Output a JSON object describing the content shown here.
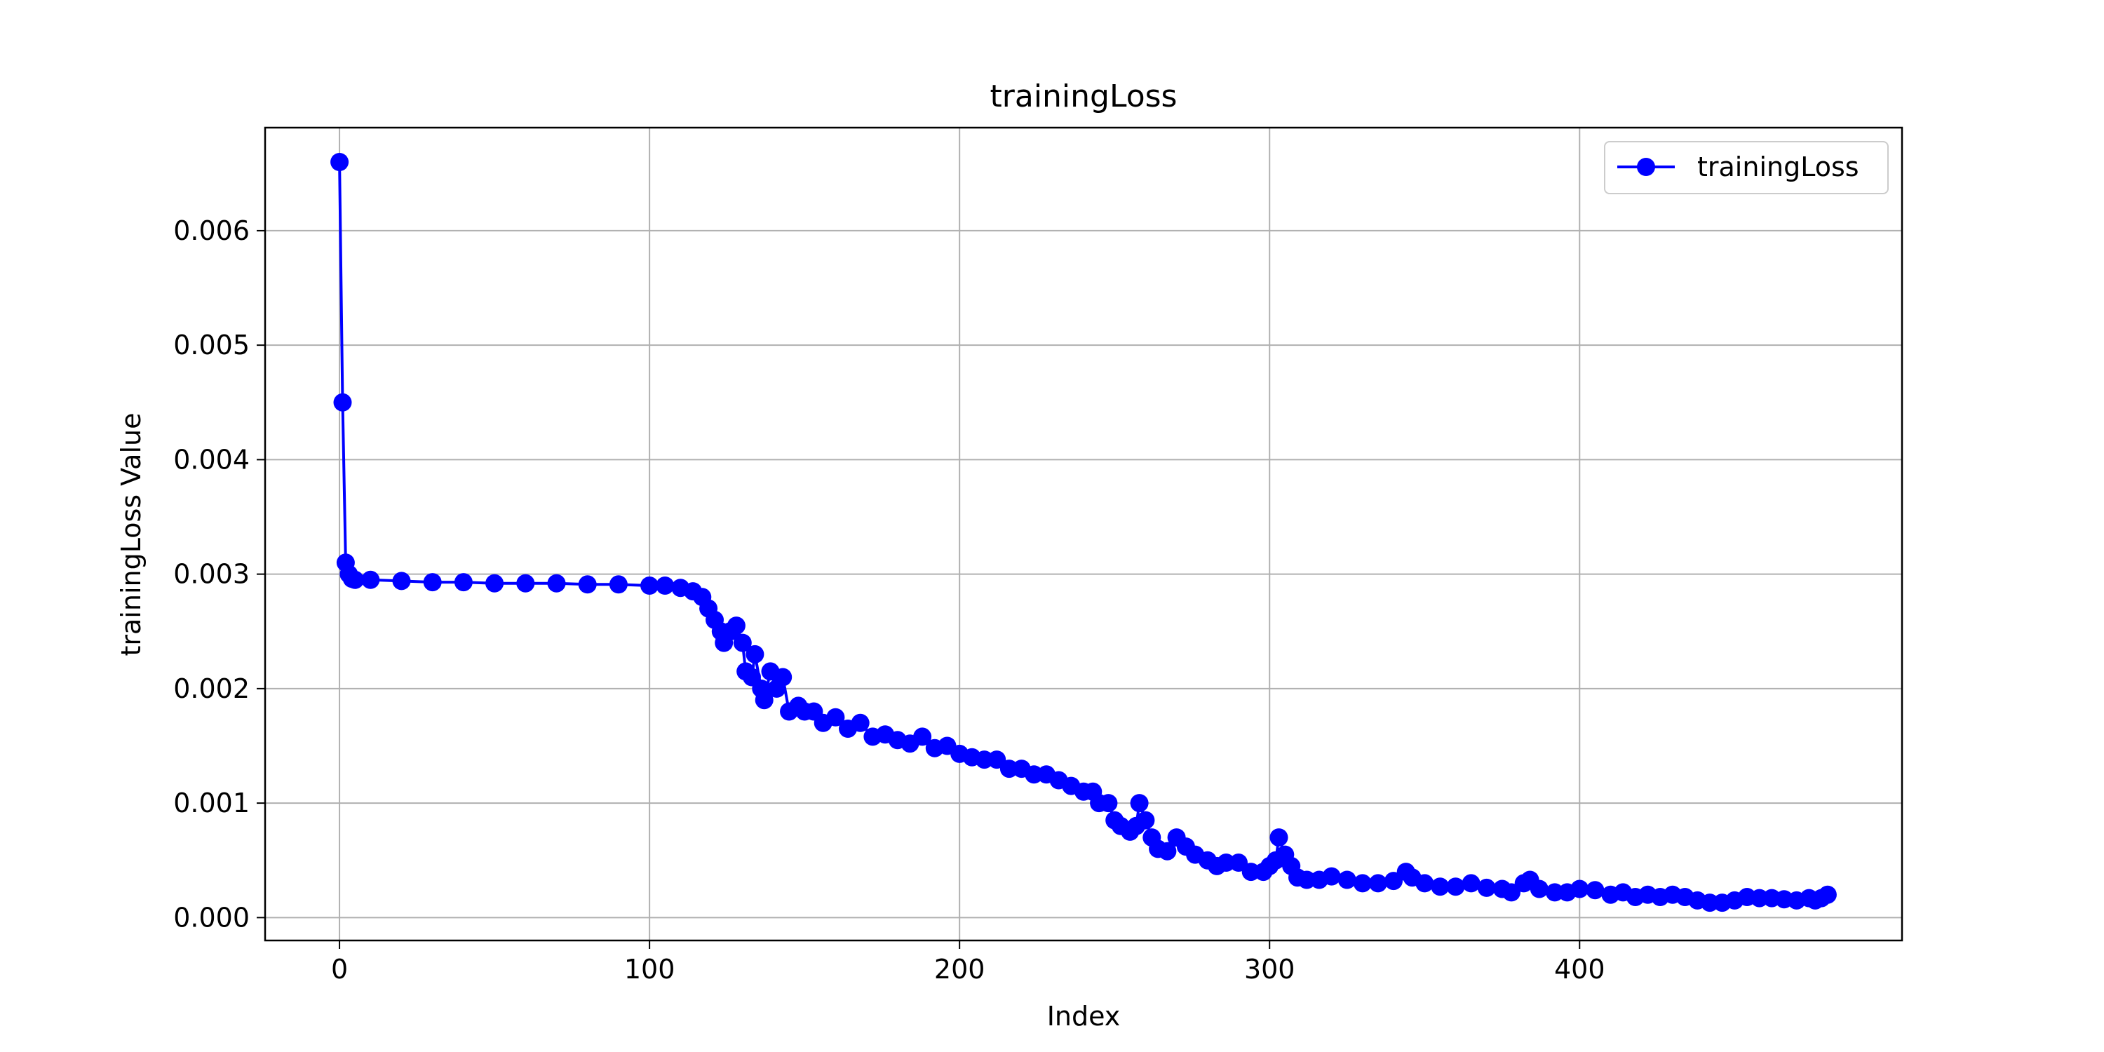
{
  "chart_data": {
    "type": "line",
    "title": "trainingLoss",
    "xlabel": "Index",
    "ylabel": "trainingLoss Value",
    "xlim": [
      -24,
      504
    ],
    "ylim": [
      -0.0002,
      0.0069
    ],
    "xticks": [
      0,
      100,
      200,
      300,
      400
    ],
    "xtick_labels": [
      "0",
      "100",
      "200",
      "300",
      "400"
    ],
    "yticks": [
      0.0,
      0.001,
      0.002,
      0.003,
      0.004,
      0.005,
      0.006
    ],
    "ytick_labels": [
      "0.000",
      "0.001",
      "0.002",
      "0.003",
      "0.004",
      "0.005",
      "0.006"
    ],
    "grid": true,
    "legend_position": "upper right",
    "series": [
      {
        "name": "trainingLoss",
        "color": "#0000ff",
        "marker": "circle",
        "points": [
          [
            0,
            0.0066
          ],
          [
            1,
            0.0045
          ],
          [
            2,
            0.0031
          ],
          [
            3,
            0.003
          ],
          [
            4,
            0.00296
          ],
          [
            5,
            0.00295
          ],
          [
            10,
            0.00295
          ],
          [
            20,
            0.00294
          ],
          [
            30,
            0.00293
          ],
          [
            40,
            0.00293
          ],
          [
            50,
            0.00292
          ],
          [
            60,
            0.00292
          ],
          [
            70,
            0.00292
          ],
          [
            80,
            0.00291
          ],
          [
            90,
            0.00291
          ],
          [
            100,
            0.0029
          ],
          [
            105,
            0.0029
          ],
          [
            110,
            0.00288
          ],
          [
            114,
            0.00285
          ],
          [
            117,
            0.0028
          ],
          [
            119,
            0.0027
          ],
          [
            121,
            0.0026
          ],
          [
            123,
            0.0025
          ],
          [
            124,
            0.0024
          ],
          [
            126,
            0.0025
          ],
          [
            128,
            0.00255
          ],
          [
            130,
            0.0024
          ],
          [
            131,
            0.00215
          ],
          [
            133,
            0.0021
          ],
          [
            134,
            0.0023
          ],
          [
            136,
            0.002
          ],
          [
            137,
            0.0019
          ],
          [
            139,
            0.00215
          ],
          [
            141,
            0.002
          ],
          [
            143,
            0.0021
          ],
          [
            145,
            0.0018
          ],
          [
            148,
            0.00185
          ],
          [
            150,
            0.0018
          ],
          [
            153,
            0.0018
          ],
          [
            156,
            0.0017
          ],
          [
            160,
            0.00175
          ],
          [
            164,
            0.00165
          ],
          [
            168,
            0.0017
          ],
          [
            172,
            0.00158
          ],
          [
            176,
            0.0016
          ],
          [
            180,
            0.00155
          ],
          [
            184,
            0.00152
          ],
          [
            188,
            0.00158
          ],
          [
            192,
            0.00148
          ],
          [
            196,
            0.0015
          ],
          [
            200,
            0.00143
          ],
          [
            204,
            0.0014
          ],
          [
            208,
            0.00138
          ],
          [
            212,
            0.00138
          ],
          [
            216,
            0.0013
          ],
          [
            220,
            0.0013
          ],
          [
            224,
            0.00125
          ],
          [
            228,
            0.00125
          ],
          [
            232,
            0.0012
          ],
          [
            236,
            0.00115
          ],
          [
            240,
            0.0011
          ],
          [
            243,
            0.0011
          ],
          [
            245,
            0.001
          ],
          [
            248,
            0.001
          ],
          [
            250,
            0.00085
          ],
          [
            252,
            0.0008
          ],
          [
            255,
            0.00075
          ],
          [
            257,
            0.0008
          ],
          [
            258,
            0.001
          ],
          [
            260,
            0.00085
          ],
          [
            262,
            0.0007
          ],
          [
            264,
            0.0006
          ],
          [
            267,
            0.00058
          ],
          [
            270,
            0.0007
          ],
          [
            273,
            0.00062
          ],
          [
            276,
            0.00055
          ],
          [
            280,
            0.0005
          ],
          [
            283,
            0.00045
          ],
          [
            286,
            0.00048
          ],
          [
            290,
            0.00048
          ],
          [
            294,
            0.0004
          ],
          [
            298,
            0.0004
          ],
          [
            300,
            0.00045
          ],
          [
            302,
            0.0005
          ],
          [
            303,
            0.0007
          ],
          [
            305,
            0.00055
          ],
          [
            307,
            0.00045
          ],
          [
            309,
            0.00035
          ],
          [
            312,
            0.00033
          ],
          [
            316,
            0.00033
          ],
          [
            320,
            0.00036
          ],
          [
            325,
            0.00033
          ],
          [
            330,
            0.0003
          ],
          [
            335,
            0.0003
          ],
          [
            340,
            0.00032
          ],
          [
            344,
            0.0004
          ],
          [
            346,
            0.00035
          ],
          [
            350,
            0.0003
          ],
          [
            355,
            0.00027
          ],
          [
            360,
            0.00027
          ],
          [
            365,
            0.0003
          ],
          [
            370,
            0.00026
          ],
          [
            375,
            0.00025
          ],
          [
            378,
            0.00022
          ],
          [
            382,
            0.0003
          ],
          [
            384,
            0.00033
          ],
          [
            387,
            0.00025
          ],
          [
            392,
            0.00022
          ],
          [
            396,
            0.00022
          ],
          [
            400,
            0.00025
          ],
          [
            405,
            0.00024
          ],
          [
            410,
            0.0002
          ],
          [
            414,
            0.00022
          ],
          [
            418,
            0.00018
          ],
          [
            422,
            0.0002
          ],
          [
            426,
            0.00018
          ],
          [
            430,
            0.0002
          ],
          [
            434,
            0.00018
          ],
          [
            438,
            0.00015
          ],
          [
            442,
            0.00013
          ],
          [
            446,
            0.00013
          ],
          [
            450,
            0.00015
          ],
          [
            454,
            0.00018
          ],
          [
            458,
            0.00017
          ],
          [
            462,
            0.00017
          ],
          [
            466,
            0.00016
          ],
          [
            470,
            0.00015
          ],
          [
            474,
            0.00017
          ],
          [
            476,
            0.00015
          ],
          [
            478,
            0.00017
          ],
          [
            480,
            0.0002
          ]
        ]
      }
    ]
  }
}
